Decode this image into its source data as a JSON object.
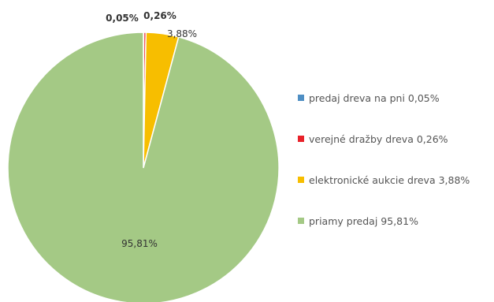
{
  "chart_data": {
    "type": "pie",
    "title": "",
    "categories": [
      "predaj dreva na pni",
      "verejné dražby dreva",
      "elektronické aukcie dreva",
      "priamy predaj"
    ],
    "values": [
      0.05,
      0.26,
      3.88,
      95.81
    ],
    "data_labels": [
      "0,05%",
      "0,26%",
      "3,88%",
      "95,81%"
    ],
    "legend_labels": [
      "predaj dreva na pni 0,05%",
      "verejné dražby dreva 0,26%",
      "elektronické aukcie dreva 3,88%",
      "priamy predaj 95,81%"
    ],
    "colors": [
      "#4f8fc4",
      "#e8222a",
      "#f7be00",
      "#a4c985"
    ],
    "legend_position": "right"
  }
}
